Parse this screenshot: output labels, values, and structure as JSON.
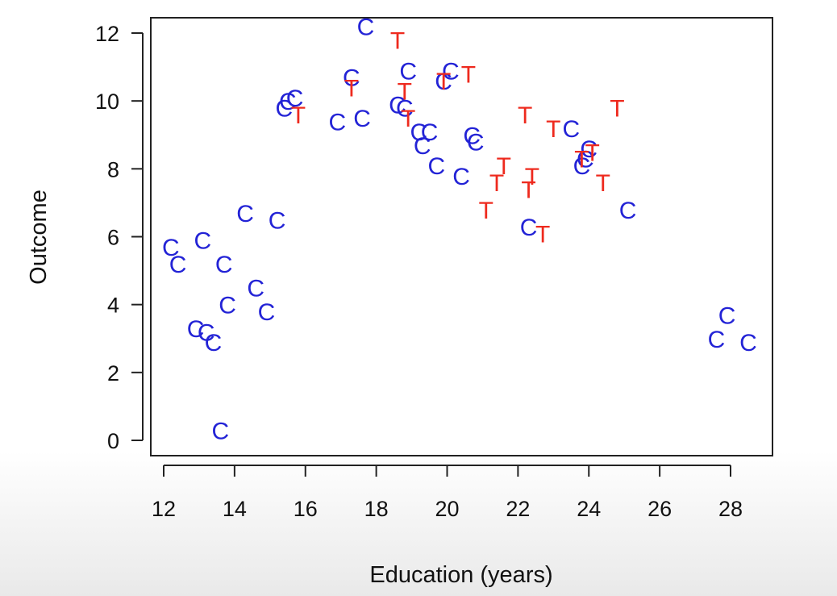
{
  "chart_data": {
    "type": "scatter",
    "title": "",
    "xlabel": "Education (years)",
    "ylabel": "Outcome",
    "xlim": [
      12,
      28.5
    ],
    "ylim": [
      0,
      12
    ],
    "x_ticks": [
      "12",
      "14",
      "16",
      "18",
      "20",
      "22",
      "24",
      "26",
      "28"
    ],
    "y_ticks": [
      "0",
      "2",
      "4",
      "6",
      "8",
      "10",
      "12"
    ],
    "grid": false,
    "legend": "none",
    "colors": {
      "C": "#2323d6",
      "T": "#ee2a1e"
    },
    "series": [
      {
        "marker": "C",
        "points": [
          [
            12.2,
            5.7
          ],
          [
            12.4,
            5.2
          ],
          [
            13.1,
            5.9
          ],
          [
            13.7,
            5.2
          ],
          [
            12.9,
            3.3
          ],
          [
            13.2,
            3.2
          ],
          [
            13.4,
            2.9
          ],
          [
            13.8,
            4.0
          ],
          [
            14.3,
            6.7
          ],
          [
            14.6,
            4.5
          ],
          [
            14.9,
            3.8
          ],
          [
            15.2,
            6.5
          ],
          [
            13.6,
            0.3
          ],
          [
            15.4,
            9.8
          ],
          [
            15.5,
            10.0
          ],
          [
            15.7,
            10.1
          ],
          [
            16.9,
            9.4
          ],
          [
            17.3,
            10.7
          ],
          [
            17.6,
            9.5
          ],
          [
            17.7,
            12.2
          ],
          [
            18.6,
            9.9
          ],
          [
            18.8,
            9.8
          ],
          [
            18.9,
            10.9
          ],
          [
            19.2,
            9.1
          ],
          [
            19.3,
            8.7
          ],
          [
            19.5,
            9.1
          ],
          [
            19.7,
            8.1
          ],
          [
            19.9,
            10.6
          ],
          [
            20.1,
            10.9
          ],
          [
            20.4,
            7.8
          ],
          [
            20.7,
            9.0
          ],
          [
            20.8,
            8.8
          ],
          [
            22.3,
            6.3
          ],
          [
            23.5,
            9.2
          ],
          [
            23.8,
            8.1
          ],
          [
            23.9,
            8.3
          ],
          [
            24.0,
            8.6
          ],
          [
            25.1,
            6.8
          ],
          [
            27.6,
            3.0
          ],
          [
            27.9,
            3.7
          ],
          [
            28.5,
            2.9
          ]
        ]
      },
      {
        "marker": "T",
        "points": [
          [
            15.8,
            9.6
          ],
          [
            17.3,
            10.4
          ],
          [
            18.6,
            11.8
          ],
          [
            18.8,
            10.3
          ],
          [
            18.9,
            9.5
          ],
          [
            19.9,
            10.6
          ],
          [
            20.6,
            10.8
          ],
          [
            21.1,
            6.8
          ],
          [
            21.4,
            7.6
          ],
          [
            21.6,
            8.1
          ],
          [
            22.2,
            9.6
          ],
          [
            22.3,
            7.4
          ],
          [
            22.4,
            7.8
          ],
          [
            22.7,
            6.1
          ],
          [
            23.0,
            9.2
          ],
          [
            23.8,
            8.3
          ],
          [
            24.1,
            8.5
          ],
          [
            24.4,
            7.6
          ],
          [
            24.8,
            9.8
          ]
        ]
      }
    ]
  }
}
